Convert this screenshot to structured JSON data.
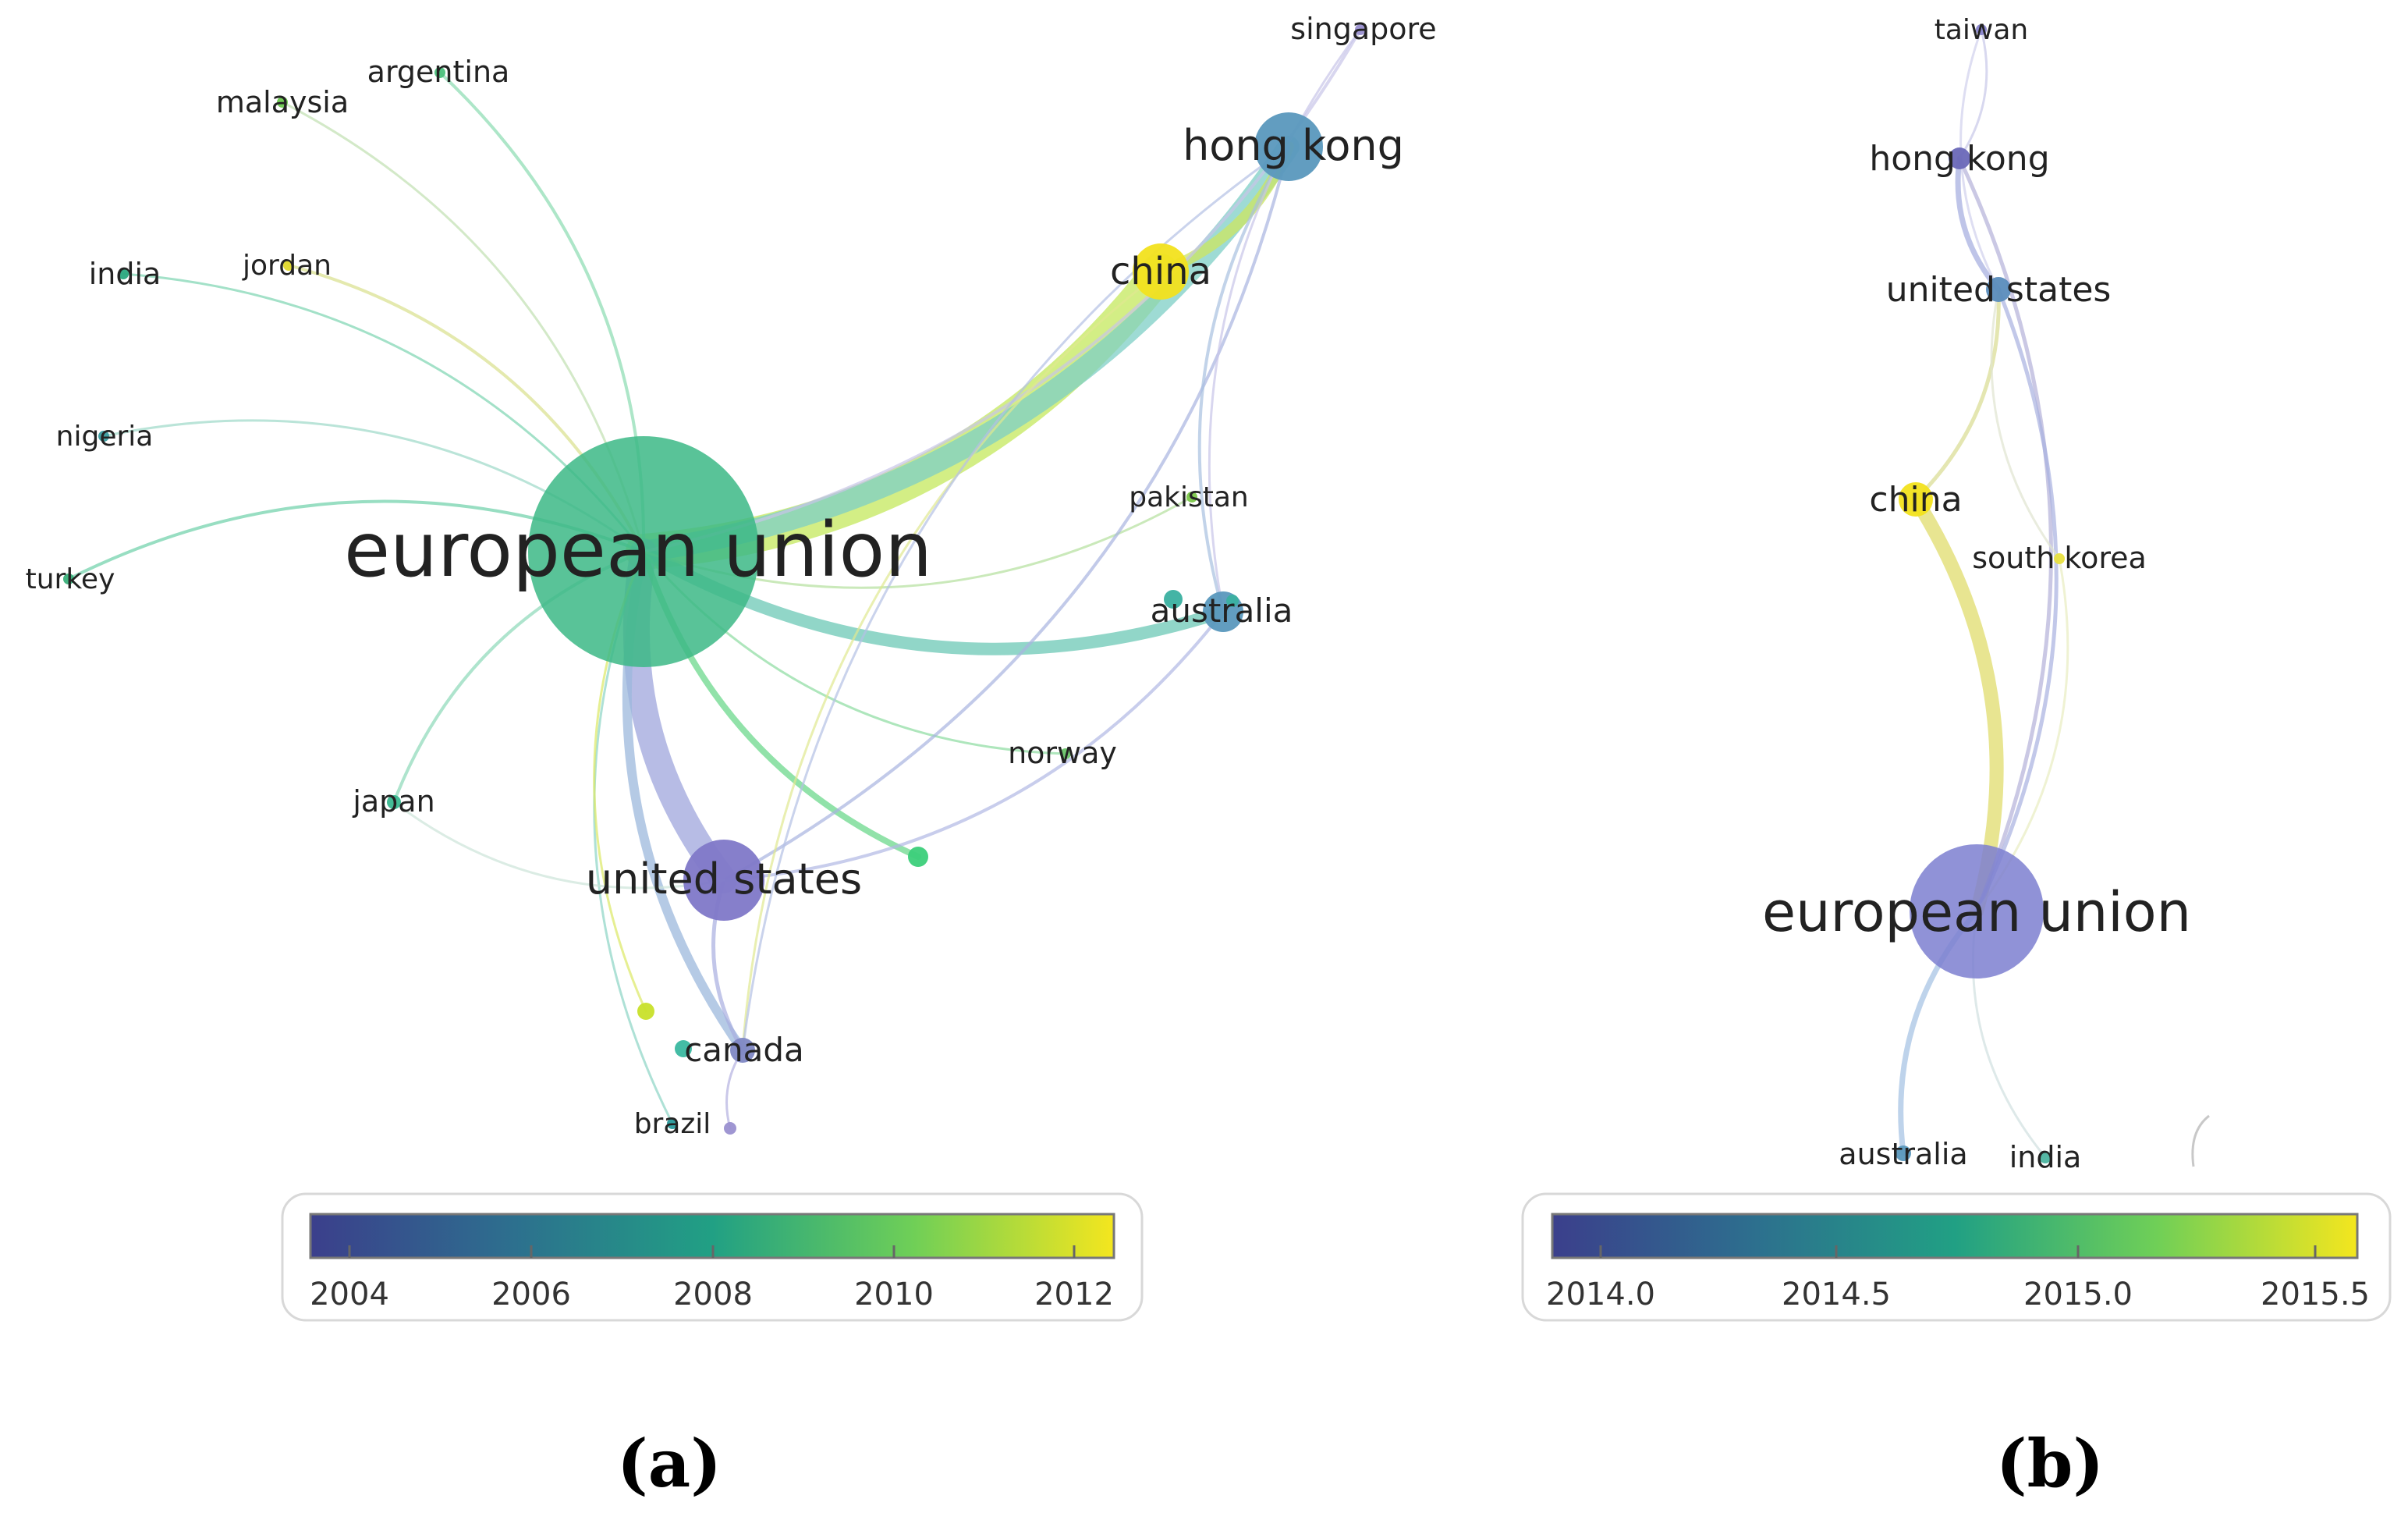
{
  "panels": [
    {
      "label": "(a)",
      "colorbar_ticks": [
        "2004",
        "2006",
        "2008",
        "2010",
        "2012"
      ],
      "nodes": [
        {
          "id": "european union",
          "label": "european union",
          "color": "#3cb886"
        },
        {
          "id": "united states",
          "label": "united states",
          "color": "#7f78c8"
        },
        {
          "id": "china",
          "label": "china",
          "color": "#f2e21e"
        },
        {
          "id": "hong kong",
          "label": "hong kong",
          "color": "#5a98bd"
        },
        {
          "id": "australia",
          "label": "australia",
          "color": "#5a98bd"
        },
        {
          "id": "canada",
          "label": "canada",
          "color": "#7f88c4"
        },
        {
          "id": "singapore",
          "label": "singapore",
          "color": "#9a90d0"
        },
        {
          "id": "argentina",
          "label": "argentina",
          "color": "#4cc07c"
        },
        {
          "id": "malaysia",
          "label": "malaysia",
          "color": "#6cc84e"
        },
        {
          "id": "india",
          "label": "india",
          "color": "#2aa880"
        },
        {
          "id": "jordan",
          "label": "jordan",
          "color": "#e0d82a"
        },
        {
          "id": "nigeria",
          "label": "nigeria",
          "color": "#3a9ca0"
        },
        {
          "id": "turkey",
          "label": "turkey",
          "color": "#3ab07a"
        },
        {
          "id": "pakistan",
          "label": "pakistan",
          "color": "#7cc84a"
        },
        {
          "id": "norway",
          "label": "norway",
          "color": "#6cc46a"
        },
        {
          "id": "japan",
          "label": "japan",
          "color": "#3ab890"
        },
        {
          "id": "brazil",
          "label": "brazil",
          "color": "#2a9a9c"
        },
        {
          "id": "n1",
          "label": "",
          "color": "#3ccf7a"
        },
        {
          "id": "n2",
          "label": "",
          "color": "#c8e02a"
        },
        {
          "id": "n3",
          "label": "",
          "color": "#3ab8a0"
        },
        {
          "id": "n4",
          "label": "",
          "color": "#9a90d0"
        },
        {
          "id": "n5",
          "label": "",
          "color": "#3ab0a0"
        },
        {
          "id": "n6",
          "label": "",
          "color": "#3ab0a0"
        }
      ],
      "edges": [
        {
          "source": "european union",
          "target": "china",
          "color": "#c4e85c"
        },
        {
          "source": "european union",
          "target": "hong kong",
          "color": "#7ecfc6"
        },
        {
          "source": "european union",
          "target": "united states",
          "color": "#9fa6dc"
        },
        {
          "source": "european union",
          "target": "australia",
          "color": "#6cc8b6"
        },
        {
          "source": "european union",
          "target": "canada",
          "color": "#9cb8dc"
        },
        {
          "source": "european union",
          "target": "n1",
          "color": "#6cd88c"
        },
        {
          "source": "china",
          "target": "hong kong",
          "color": "#cce660"
        },
        {
          "source": "european union",
          "target": "singapore",
          "color": "#c8c4e8"
        },
        {
          "source": "european union",
          "target": "argentina",
          "color": "#8adcb0"
        },
        {
          "source": "european union",
          "target": "malaysia",
          "color": "#c0e0b0"
        },
        {
          "source": "european union",
          "target": "india",
          "color": "#7cd4b0"
        },
        {
          "source": "european union",
          "target": "jordan",
          "color": "#d8e08c"
        },
        {
          "source": "european union",
          "target": "nigeria",
          "color": "#9cd8c8"
        },
        {
          "source": "european union",
          "target": "turkey",
          "color": "#6cd0a8"
        },
        {
          "source": "european union",
          "target": "japan",
          "color": "#8cd8b8"
        },
        {
          "source": "european union",
          "target": "norway",
          "color": "#8cdca0"
        },
        {
          "source": "european union",
          "target": "pakistan",
          "color": "#b4e09c"
        },
        {
          "source": "european union",
          "target": "brazil",
          "color": "#8cd4c4"
        },
        {
          "source": "european union",
          "target": "n2",
          "color": "#dce864"
        },
        {
          "source": "united states",
          "target": "canada",
          "color": "#a8aee0"
        },
        {
          "source": "united states",
          "target": "hong kong",
          "color": "#a8b4e0"
        },
        {
          "source": "united states",
          "target": "australia",
          "color": "#b0b8e4"
        },
        {
          "source": "china",
          "target": "canada",
          "color": "#e0e890"
        },
        {
          "source": "hong kong",
          "target": "australia",
          "color": "#a8c0e0"
        },
        {
          "source": "singapore",
          "target": "australia",
          "color": "#c8c4e8"
        },
        {
          "source": "hong kong",
          "target": "canada",
          "color": "#b4c0e4"
        },
        {
          "source": "japan",
          "target": "united states",
          "color": "#cce4d8"
        },
        {
          "source": "canada",
          "target": "n4",
          "color": "#b4b0e0"
        }
      ]
    },
    {
      "label": "(b)",
      "colorbar_ticks": [
        "2014.0",
        "2014.5",
        "2015.0",
        "2015.5"
      ],
      "nodes": [
        {
          "id": "european union",
          "label": "european union",
          "color": "#7d7fd0"
        },
        {
          "id": "taiwan",
          "label": "taiwan",
          "color": "#8884cc"
        },
        {
          "id": "hong kong",
          "label": "hong kong",
          "color": "#6a68b8"
        },
        {
          "id": "united states",
          "label": "united states",
          "color": "#5a8cbc"
        },
        {
          "id": "china",
          "label": "china",
          "color": "#f2e21e"
        },
        {
          "id": "south korea",
          "label": "south korea",
          "color": "#e8e040"
        },
        {
          "id": "australia",
          "label": "australia",
          "color": "#5a98bd"
        },
        {
          "id": "india",
          "label": "india",
          "color": "#4cb4a0"
        }
      ],
      "edges": [
        {
          "source": "european union",
          "target": "china",
          "color": "#e0dc6c"
        },
        {
          "source": "european union",
          "target": "hong kong",
          "color": "#b4b0d8"
        },
        {
          "source": "european union",
          "target": "united states",
          "color": "#a8b0e0"
        },
        {
          "source": "european union",
          "target": "australia",
          "color": "#a8c4e4"
        },
        {
          "source": "european union",
          "target": "south korea",
          "color": "#e8ecc0"
        },
        {
          "source": "european union",
          "target": "india",
          "color": "#d0e0e0"
        },
        {
          "source": "china",
          "target": "united states",
          "color": "#d8dc90"
        },
        {
          "source": "hong kong",
          "target": "united states",
          "color": "#a8b0e0"
        },
        {
          "source": "hong kong",
          "target": "taiwan",
          "color": "#c8c8e8"
        },
        {
          "source": "taiwan",
          "target": "united states",
          "color": "#d0d0ec"
        },
        {
          "source": "united states",
          "target": "south korea",
          "color": "#e0e4d0"
        }
      ]
    }
  ]
}
